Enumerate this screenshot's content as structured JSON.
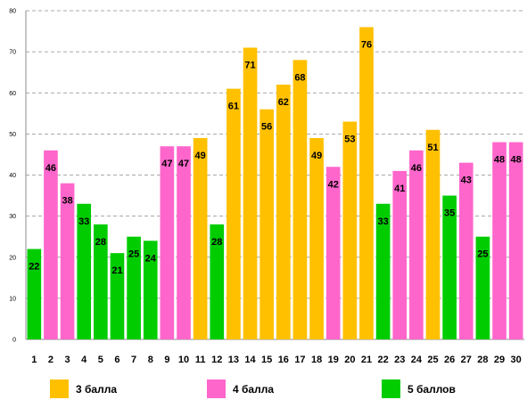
{
  "chart_data": {
    "type": "bar",
    "categories": [
      "1",
      "2",
      "3",
      "4",
      "5",
      "6",
      "7",
      "8",
      "9",
      "10",
      "11",
      "12",
      "13",
      "14",
      "15",
      "16",
      "17",
      "18",
      "19",
      "20",
      "21",
      "22",
      "23",
      "24",
      "25",
      "26",
      "27",
      "28",
      "29",
      "30"
    ],
    "values": [
      22,
      46,
      38,
      33,
      28,
      21,
      25,
      24,
      47,
      47,
      49,
      28,
      61,
      71,
      56,
      62,
      68,
      49,
      42,
      53,
      76,
      33,
      41,
      46,
      51,
      35,
      43,
      25,
      48,
      48
    ],
    "groups": [
      "5",
      "4",
      "4",
      "5",
      "5",
      "5",
      "5",
      "5",
      "4",
      "4",
      "3",
      "5",
      "3",
      "3",
      "3",
      "3",
      "3",
      "3",
      "4",
      "3",
      "3",
      "5",
      "4",
      "4",
      "3",
      "5",
      "4",
      "5",
      "4",
      "4"
    ],
    "legend": [
      {
        "key": "3",
        "label": "3 балла",
        "color": "#ffc000"
      },
      {
        "key": "4",
        "label": "4 балла",
        "color": "#ff66cc"
      },
      {
        "key": "5",
        "label": "5 баллов",
        "color": "#00cc00"
      }
    ],
    "y_ticks": [
      0,
      10,
      20,
      30,
      40,
      50,
      60,
      70,
      80
    ],
    "ylim": [
      0,
      80
    ],
    "grid": true,
    "grid_style": "dashed",
    "legend_position": "bottom",
    "data_labels": true
  }
}
